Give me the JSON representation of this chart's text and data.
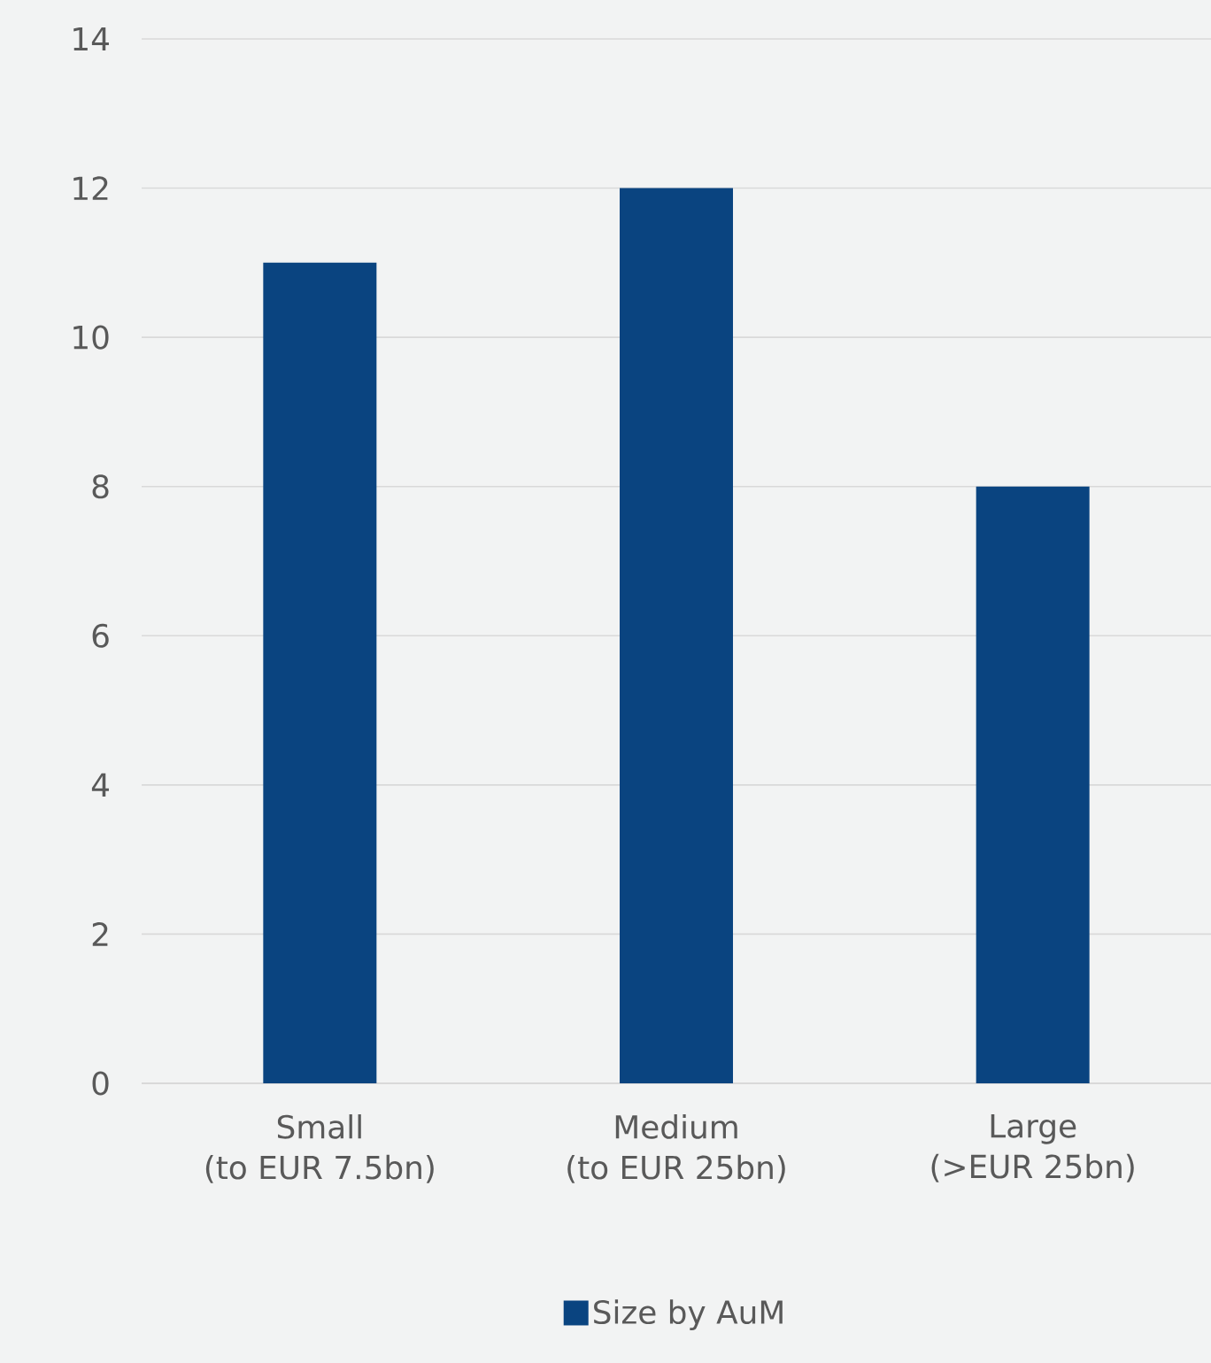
{
  "chart_data": {
    "type": "bar",
    "categories": [
      "Small\n(to EUR 7.5bn)",
      "Medium\n(to EUR 25bn)",
      "Large\n(>EUR 25bn)"
    ],
    "series": [
      {
        "name": "Size by AuM",
        "color": "#0a4480",
        "values": [
          11,
          12,
          8
        ]
      }
    ],
    "ylim": [
      0,
      14
    ],
    "yticks": [
      0,
      2,
      4,
      6,
      8,
      10,
      12,
      14
    ],
    "grid": "y",
    "legend": "bottom"
  }
}
